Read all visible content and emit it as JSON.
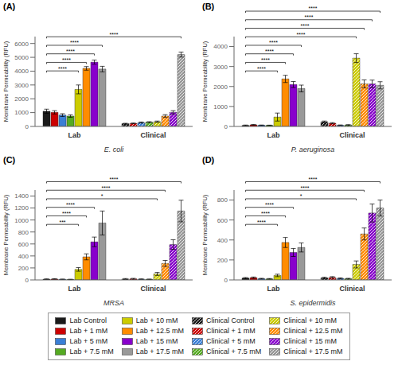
{
  "chart_data": [
    {
      "type": "bar",
      "title": "(A)",
      "x_label": "E. coli",
      "y_label": "Membrane Permeability (RFU)",
      "categories": [
        "Lab",
        "Clinical"
      ],
      "series": [
        {
          "name": "Lab Control",
          "color": "#1a1a1a",
          "values": [
            1100,
            null
          ],
          "errors": [
            150,
            null
          ]
        },
        {
          "name": "Lab + 1 mM",
          "color": "#cc0000",
          "values": [
            1020,
            null
          ],
          "errors": [
            120,
            null
          ]
        },
        {
          "name": "Lab + 5 mM",
          "color": "#3a7fd5",
          "values": [
            820,
            null
          ],
          "errors": [
            100,
            null
          ]
        },
        {
          "name": "Lab + 7.5 mM",
          "color": "#55aa22",
          "values": [
            750,
            null
          ],
          "errors": [
            90,
            null
          ]
        },
        {
          "name": "Lab + 10 mM",
          "color": "#cccc00",
          "values": [
            2680,
            null
          ],
          "errors": [
            320,
            null
          ]
        },
        {
          "name": "Lab + 12.5 mM",
          "color": "#ff8c00",
          "values": [
            4200,
            null
          ],
          "errors": [
            130,
            null
          ]
        },
        {
          "name": "Lab + 15 mM",
          "color": "#8800cc",
          "values": [
            4650,
            null
          ],
          "errors": [
            150,
            null
          ]
        },
        {
          "name": "Lab + 17.5 mM",
          "color": "#999999",
          "values": [
            4150,
            null
          ],
          "errors": [
            200,
            null
          ]
        },
        {
          "name": "Clinical Control",
          "color": "#1a1a1a",
          "values": [
            null,
            200
          ],
          "errors": [
            null,
            30
          ]
        },
        {
          "name": "Clinical + 1 mM",
          "color": "#cc0000",
          "values": [
            null,
            220
          ],
          "errors": [
            null,
            25
          ]
        },
        {
          "name": "Clinical + 5 mM",
          "color": "#3a7fd5",
          "values": [
            null,
            280
          ],
          "errors": [
            null,
            40
          ]
        },
        {
          "name": "Clinical + 7.5 mM",
          "color": "#55aa22",
          "values": [
            null,
            310
          ],
          "errors": [
            null,
            35
          ]
        },
        {
          "name": "Clinical + 10 mM",
          "color": "#cccc00",
          "values": [
            null,
            340
          ],
          "errors": [
            null,
            50
          ]
        },
        {
          "name": "Clinical + 12.5 mM",
          "color": "#ff8c00",
          "values": [
            null,
            750
          ],
          "errors": [
            null,
            100
          ]
        },
        {
          "name": "Clinical + 15 mM",
          "color": "#8800cc",
          "values": [
            null,
            1020
          ],
          "errors": [
            null,
            120
          ]
        },
        {
          "name": "Clinical + 17.5 mM",
          "color": "#999999",
          "values": [
            null,
            5200
          ],
          "errors": [
            null,
            180
          ]
        }
      ],
      "ylim": [
        0,
        6500
      ],
      "yticks": [
        0,
        1000,
        2000,
        3000,
        4000,
        5000,
        6000
      ],
      "grid": false,
      "annotations": [
        {
          "label": "****",
          "from": "Lab Control",
          "to": "Lab + 10 mM"
        },
        {
          "label": "****",
          "from": "Lab Control",
          "to": "Lab + 12.5 mM"
        },
        {
          "label": "****",
          "from": "Lab Control",
          "to": "Lab + 15 mM"
        },
        {
          "label": "****",
          "from": "Lab Control",
          "to": "Lab + 17.5 mM"
        },
        {
          "label": "****",
          "from": "Lab Control",
          "to": "Clinical + 17.5 mM"
        }
      ]
    },
    {
      "type": "bar",
      "title": "(B)",
      "x_label": "P. aeruginosa",
      "y_label": "Membrane Permeability (RFU)",
      "categories": [
        "Lab",
        "Clinical"
      ],
      "series": [
        {
          "name": "Lab Control",
          "color": "#1a1a1a",
          "values": [
            50,
            null
          ],
          "errors": [
            20,
            null
          ]
        },
        {
          "name": "Lab + 1 mM",
          "color": "#cc0000",
          "values": [
            80,
            null
          ],
          "errors": [
            15,
            null
          ]
        },
        {
          "name": "Lab + 5 mM",
          "color": "#3a7fd5",
          "values": [
            60,
            null
          ],
          "errors": [
            12,
            null
          ]
        },
        {
          "name": "Lab + 7.5 mM",
          "color": "#55aa22",
          "values": [
            55,
            null
          ],
          "errors": [
            10,
            null
          ]
        },
        {
          "name": "Lab + 10 mM",
          "color": "#cccc00",
          "values": [
            470,
            null
          ],
          "errors": [
            200,
            null
          ]
        },
        {
          "name": "Lab + 12.5 mM",
          "color": "#ff8c00",
          "values": [
            2380,
            null
          ],
          "errors": [
            180,
            null
          ]
        },
        {
          "name": "Lab + 15 mM",
          "color": "#8800cc",
          "values": [
            2100,
            null
          ],
          "errors": [
            150,
            null
          ]
        },
        {
          "name": "Lab + 17.5 mM",
          "color": "#999999",
          "values": [
            1900,
            null
          ],
          "errors": [
            170,
            null
          ]
        },
        {
          "name": "Clinical Control",
          "color": "#1a1a1a",
          "values": [
            null,
            230
          ],
          "errors": [
            null,
            40
          ]
        },
        {
          "name": "Clinical + 1 mM",
          "color": "#cc0000",
          "values": [
            null,
            160
          ],
          "errors": [
            null,
            30
          ]
        },
        {
          "name": "Clinical + 5 mM",
          "color": "#3a7fd5",
          "values": [
            null,
            60
          ],
          "errors": [
            null,
            15
          ]
        },
        {
          "name": "Clinical + 7.5 mM",
          "color": "#55aa22",
          "values": [
            null,
            70
          ],
          "errors": [
            null,
            20
          ]
        },
        {
          "name": "Clinical + 10 mM",
          "color": "#cccc00",
          "values": [
            null,
            3420
          ],
          "errors": [
            null,
            220
          ]
        },
        {
          "name": "Clinical + 12.5 mM",
          "color": "#ff8c00",
          "values": [
            null,
            2130
          ],
          "errors": [
            null,
            200
          ]
        },
        {
          "name": "Clinical + 15 mM",
          "color": "#8800cc",
          "values": [
            null,
            2130
          ],
          "errors": [
            null,
            190
          ]
        },
        {
          "name": "Clinical + 17.5 mM",
          "color": "#999999",
          "values": [
            null,
            2060
          ],
          "errors": [
            null,
            180
          ]
        }
      ],
      "ylim": [
        0,
        4500
      ],
      "yticks": [
        0,
        1000,
        2000,
        3000,
        4000
      ],
      "grid": false,
      "annotations": [
        {
          "label": "****",
          "from": "Lab Control",
          "to": "Lab + 10 mM"
        },
        {
          "label": "****",
          "from": "Lab Control",
          "to": "Lab + 12.5 mM"
        },
        {
          "label": "****",
          "from": "Lab Control",
          "to": "Lab + 15 mM"
        },
        {
          "label": "****",
          "from": "Lab Control",
          "to": "Lab + 17.5 mM"
        },
        {
          "label": "****",
          "from": "Lab Control",
          "to": "Clinical + 10 mM"
        },
        {
          "label": "****",
          "from": "Lab Control",
          "to": "Clinical + 12.5 mM"
        },
        {
          "label": "****",
          "from": "Lab Control",
          "to": "Clinical + 15 mM"
        },
        {
          "label": "****",
          "from": "Lab Control",
          "to": "Clinical + 17.5 mM"
        }
      ]
    },
    {
      "type": "bar",
      "title": "(C)",
      "x_label": "MRSA",
      "y_label": "Membrane Permeability (RFU)",
      "categories": [
        "Lab",
        "Clinical"
      ],
      "series": [
        {
          "name": "Lab Control",
          "color": "#1a1a1a",
          "values": [
            12,
            null
          ],
          "errors": [
            5,
            null
          ]
        },
        {
          "name": "Lab + 1 mM",
          "color": "#cc0000",
          "values": [
            14,
            null
          ],
          "errors": [
            5,
            null
          ]
        },
        {
          "name": "Lab + 5 mM",
          "color": "#3a7fd5",
          "values": [
            10,
            null
          ],
          "errors": [
            4,
            null
          ]
        },
        {
          "name": "Lab + 7.5 mM",
          "color": "#55aa22",
          "values": [
            8,
            null
          ],
          "errors": [
            3,
            null
          ]
        },
        {
          "name": "Lab + 10 mM",
          "color": "#cccc00",
          "values": [
            175,
            null
          ],
          "errors": [
            30,
            null
          ]
        },
        {
          "name": "Lab + 12.5 mM",
          "color": "#ff8c00",
          "values": [
            385,
            null
          ],
          "errors": [
            50,
            null
          ]
        },
        {
          "name": "Lab + 15 mM",
          "color": "#8800cc",
          "values": [
            635,
            null
          ],
          "errors": [
            80,
            null
          ]
        },
        {
          "name": "Lab + 17.5 mM",
          "color": "#999999",
          "values": [
            950,
            null
          ],
          "errors": [
            200,
            null
          ]
        },
        {
          "name": "Clinical Control",
          "color": "#1a1a1a",
          "values": [
            null,
            15
          ],
          "errors": [
            null,
            8
          ]
        },
        {
          "name": "Clinical + 1 mM",
          "color": "#cc0000",
          "values": [
            null,
            18
          ],
          "errors": [
            null,
            8
          ]
        },
        {
          "name": "Clinical + 5 mM",
          "color": "#3a7fd5",
          "values": [
            null,
            12
          ],
          "errors": [
            null,
            5
          ]
        },
        {
          "name": "Clinical + 7.5 mM",
          "color": "#55aa22",
          "values": [
            null,
            10
          ],
          "errors": [
            null,
            4
          ]
        },
        {
          "name": "Clinical + 10 mM",
          "color": "#cccc00",
          "values": [
            null,
            100
          ],
          "errors": [
            null,
            25
          ]
        },
        {
          "name": "Clinical + 12.5 mM",
          "color": "#ff8c00",
          "values": [
            null,
            275
          ],
          "errors": [
            null,
            50
          ]
        },
        {
          "name": "Clinical + 15 mM",
          "color": "#8800cc",
          "values": [
            null,
            590
          ],
          "errors": [
            null,
            80
          ]
        },
        {
          "name": "Clinical + 17.5 mM",
          "color": "#999999",
          "values": [
            null,
            1150
          ],
          "errors": [
            null,
            180
          ]
        }
      ],
      "ylim": [
        0,
        1500
      ],
      "yticks": [
        0,
        200,
        400,
        600,
        800,
        1000,
        1200,
        1400
      ],
      "grid": false,
      "annotations": [
        {
          "label": "***",
          "from": "Lab Control",
          "to": "Lab + 10 mM"
        },
        {
          "label": "****",
          "from": "Lab Control",
          "to": "Lab + 12.5 mM"
        },
        {
          "label": "****",
          "from": "Lab Control",
          "to": "Lab + 15 mM"
        },
        {
          "label": "*",
          "from": "Lab Control",
          "to": "Clinical + 10 mM"
        },
        {
          "label": "****",
          "from": "Lab Control",
          "to": "Clinical + 12.5 mM"
        },
        {
          "label": "****",
          "from": "Lab Control",
          "to": "Clinical + 17.5 mM"
        }
      ]
    },
    {
      "type": "bar",
      "title": "(D)",
      "x_label": "S. epidermidis",
      "y_label": "Membrane Permeability (RFU)",
      "categories": [
        "Lab",
        "Clinical"
      ],
      "series": [
        {
          "name": "Lab Control",
          "color": "#1a1a1a",
          "values": [
            18,
            null
          ],
          "errors": [
            6,
            null
          ]
        },
        {
          "name": "Lab + 1 mM",
          "color": "#cc0000",
          "values": [
            22,
            null
          ],
          "errors": [
            7,
            null
          ]
        },
        {
          "name": "Lab + 5 mM",
          "color": "#3a7fd5",
          "values": [
            12,
            null
          ],
          "errors": [
            4,
            null
          ]
        },
        {
          "name": "Lab + 7.5 mM",
          "color": "#55aa22",
          "values": [
            10,
            null
          ],
          "errors": [
            4,
            null
          ]
        },
        {
          "name": "Lab + 10 mM",
          "color": "#cccc00",
          "values": [
            45,
            null
          ],
          "errors": [
            12,
            null
          ]
        },
        {
          "name": "Lab + 12.5 mM",
          "color": "#ff8c00",
          "values": [
            375,
            null
          ],
          "errors": [
            50,
            null
          ]
        },
        {
          "name": "Lab + 15 mM",
          "color": "#8800cc",
          "values": [
            275,
            null
          ],
          "errors": [
            40,
            null
          ]
        },
        {
          "name": "Lab + 17.5 mM",
          "color": "#999999",
          "values": [
            325,
            null
          ],
          "errors": [
            45,
            null
          ]
        },
        {
          "name": "Clinical Control",
          "color": "#1a1a1a",
          "values": [
            null,
            20
          ],
          "errors": [
            null,
            7
          ]
        },
        {
          "name": "Clinical + 1 mM",
          "color": "#cc0000",
          "values": [
            null,
            25
          ],
          "errors": [
            null,
            8
          ]
        },
        {
          "name": "Clinical + 5 mM",
          "color": "#3a7fd5",
          "values": [
            null,
            15
          ],
          "errors": [
            null,
            5
          ]
        },
        {
          "name": "Clinical + 7.5 mM",
          "color": "#55aa22",
          "values": [
            null,
            12
          ],
          "errors": [
            null,
            4
          ]
        },
        {
          "name": "Clinical + 10 mM",
          "color": "#cccc00",
          "values": [
            null,
            155
          ],
          "errors": [
            null,
            35
          ]
        },
        {
          "name": "Clinical + 12.5 mM",
          "color": "#ff8c00",
          "values": [
            null,
            460
          ],
          "errors": [
            null,
            60
          ]
        },
        {
          "name": "Clinical + 15 mM",
          "color": "#8800cc",
          "values": [
            null,
            670
          ],
          "errors": [
            null,
            90
          ]
        },
        {
          "name": "Clinical + 17.5 mM",
          "color": "#999999",
          "values": [
            null,
            720
          ],
          "errors": [
            null,
            80
          ]
        }
      ],
      "ylim": [
        0,
        900
      ],
      "yticks": [
        0,
        200,
        400,
        600,
        800
      ],
      "grid": false,
      "annotations": [
        {
          "label": "****",
          "from": "Lab Control",
          "to": "Lab + 10 mM"
        },
        {
          "label": "****",
          "from": "Lab Control",
          "to": "Lab + 12.5 mM"
        },
        {
          "label": "****",
          "from": "Lab Control",
          "to": "Lab + 15 mM"
        },
        {
          "label": "*",
          "from": "Lab Control",
          "to": "Clinical + 10 mM"
        },
        {
          "label": "****",
          "from": "Lab Control",
          "to": "Clinical + 12.5 mM"
        },
        {
          "label": "****",
          "from": "Lab Control",
          "to": "Clinical + 17.5 mM"
        }
      ]
    }
  ]
}
